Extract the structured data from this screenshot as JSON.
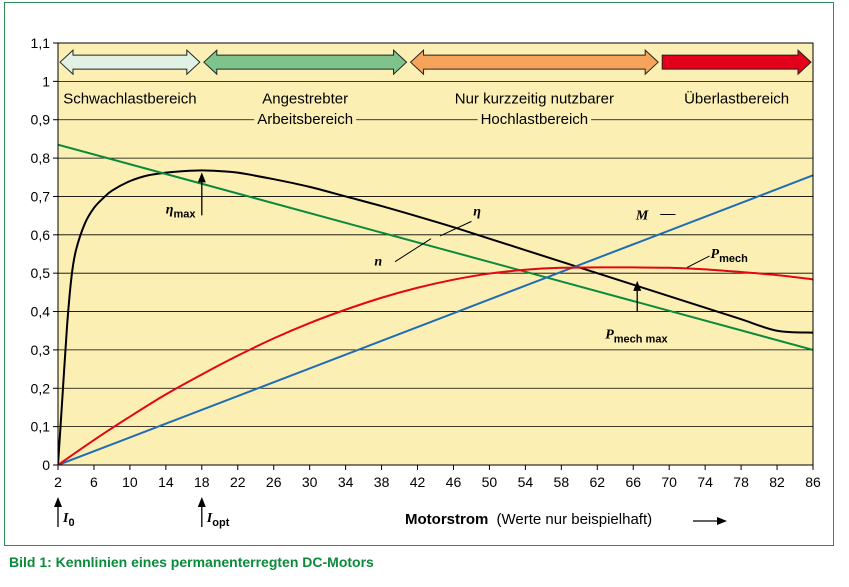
{
  "caption": "Bild 1: Kennlinien eines permanenterregten DC-Motors",
  "chart_data": {
    "type": "line",
    "xlabel_bold": "Motorstrom",
    "xlabel_note": "(Werte nur beispielhaft)",
    "xlim": [
      2,
      86
    ],
    "ylim": [
      0,
      1.1
    ],
    "x_ticks": [
      "2",
      "6",
      "10",
      "14",
      "18",
      "22",
      "26",
      "30",
      "34",
      "38",
      "42",
      "46",
      "50",
      "54",
      "58",
      "62",
      "66",
      "70",
      "74",
      "78",
      "82",
      "86"
    ],
    "y_ticks": [
      "0",
      "0,1",
      "0,2",
      "0,3",
      "0,4",
      "0,5",
      "0,6",
      "0,7",
      "0,8",
      "0,9",
      "1",
      "1,1"
    ],
    "grid": "horizontal",
    "background": "#fcefb4",
    "regions": [
      {
        "name": "Schwachlastbereich",
        "lines": [
          "Schwachlastbereich"
        ],
        "x": [
          2,
          18
        ],
        "color": "#e1f2e4"
      },
      {
        "name": "Angestrebter Arbeitsbereich",
        "lines": [
          "Angestrebter",
          "Arbeitsbereich"
        ],
        "x": [
          18,
          41
        ],
        "color": "#7dc38b"
      },
      {
        "name": "Nur kurzzeitig nutzbarer Hochlastbereich",
        "lines": [
          "Nur kurzzeitig nutzbarer",
          "Hochlastbereich"
        ],
        "x": [
          41,
          69
        ],
        "color": "#f6a35c"
      },
      {
        "name": "Überlastbereich",
        "lines": [
          "Überlastbereich"
        ],
        "x": [
          69,
          86
        ],
        "color": "#e2001a"
      }
    ],
    "series": [
      {
        "name": "η",
        "color": "#000000",
        "x": [
          2,
          2.5,
          3,
          3.5,
          4,
          5,
          6,
          7,
          8,
          10,
          12,
          14,
          16,
          18,
          20,
          22,
          26,
          30,
          34,
          38,
          42,
          46,
          50,
          54,
          58,
          62,
          66,
          70,
          74,
          78,
          82,
          86
        ],
        "y": [
          0,
          0.18,
          0.36,
          0.49,
          0.56,
          0.63,
          0.67,
          0.695,
          0.715,
          0.74,
          0.755,
          0.762,
          0.766,
          0.768,
          0.766,
          0.762,
          0.745,
          0.725,
          0.7,
          0.675,
          0.648,
          0.62,
          0.59,
          0.56,
          0.53,
          0.5,
          0.47,
          0.44,
          0.41,
          0.38,
          0.35,
          0.345
        ]
      },
      {
        "name": "n",
        "color": "#0b8a3a",
        "x": [
          2,
          86
        ],
        "y": [
          0.835,
          0.3
        ]
      },
      {
        "name": "M",
        "color": "#1f6db3",
        "x": [
          2,
          86
        ],
        "y": [
          0,
          0.755
        ]
      },
      {
        "name": "P_mech",
        "color": "#e30613",
        "x": [
          2,
          6,
          10,
          14,
          18,
          22,
          26,
          30,
          34,
          38,
          42,
          46,
          50,
          54,
          58,
          62,
          66,
          70,
          74,
          78,
          82,
          86
        ],
        "y": [
          0,
          0.065,
          0.126,
          0.184,
          0.236,
          0.285,
          0.33,
          0.37,
          0.405,
          0.436,
          0.462,
          0.483,
          0.499,
          0.509,
          0.514,
          0.515,
          0.515,
          0.514,
          0.51,
          0.503,
          0.495,
          0.484
        ]
      }
    ],
    "annotations": {
      "eta_max": {
        "main": "η",
        "sub": "max",
        "x": 18,
        "y": 0.768
      },
      "p_mech_max": {
        "main": "P",
        "sub": "mech max",
        "x": 68,
        "y": 0.515
      },
      "eta_label": "η",
      "n_label": "n",
      "m_label": "M",
      "p_mech_label": {
        "main": "P",
        "sub": "mech"
      },
      "i0": {
        "main": "I",
        "sub": "0",
        "x": 2
      },
      "iopt": {
        "main": "I",
        "sub": "opt",
        "x": 18
      }
    }
  }
}
